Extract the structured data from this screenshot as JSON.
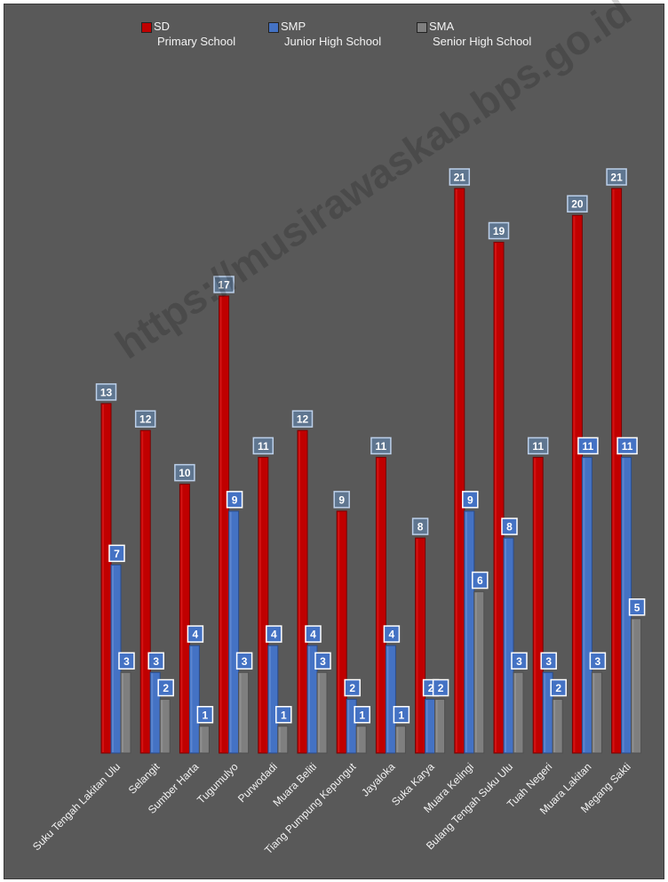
{
  "chart_data": {
    "type": "bar",
    "categories": [
      "Suku Tengah Lakitan Ulu",
      "Selangit",
      "Sumber Harta",
      "Tugumulyo",
      "Purwodadi",
      "Muara Beliti",
      "Tiang Pumpung Kepungut",
      "Jayaloka",
      "Suka Karya",
      "Muara Kelingi",
      "Bulang Tengah Suku Ulu",
      "Tuah Negeri",
      "Muara Lakitan",
      "Megang Sakti"
    ],
    "series": [
      {
        "name": "SD",
        "subtitle": "Primary School",
        "color": "#c00000",
        "values": [
          13,
          12,
          10,
          17,
          11,
          12,
          9,
          11,
          8,
          21,
          19,
          11,
          20,
          21
        ]
      },
      {
        "name": "SMP",
        "subtitle": "Junior High School",
        "color": "#4472c4",
        "values": [
          7,
          3,
          4,
          9,
          4,
          4,
          2,
          4,
          2,
          9,
          8,
          3,
          11,
          11
        ]
      },
      {
        "name": "SMA",
        "subtitle": "Senior High School",
        "color": "#7f7f7f",
        "values": [
          3,
          2,
          1,
          3,
          1,
          3,
          1,
          1,
          2,
          6,
          3,
          2,
          3,
          5
        ]
      }
    ],
    "ylim": [
      0,
      21
    ],
    "grid": false,
    "legend_position": "top-left"
  },
  "watermark": "https://musirawaskab.bps.go.id"
}
